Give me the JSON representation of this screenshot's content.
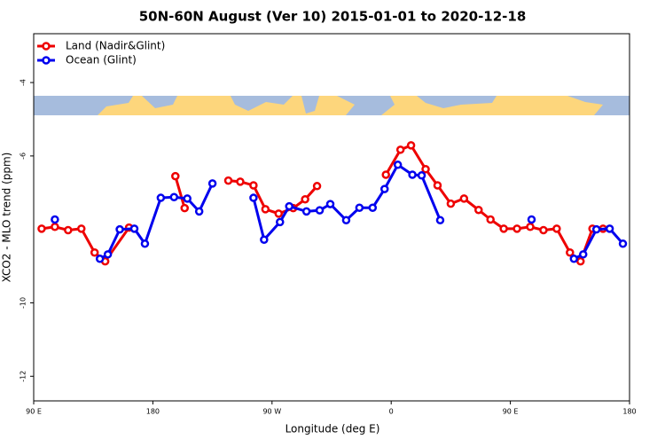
{
  "chart_data": {
    "type": "line",
    "title": "50N-60N August (Ver 10)   2015-01-01 to 2020-12-18",
    "x_label": "Longitude (deg E)",
    "y_label": "XCO2 - MLO trend (ppm)",
    "xlim": [
      90,
      540
    ],
    "ylim": [
      -12.67,
      -2.67
    ],
    "xticks": [
      {
        "value": 90,
        "label": "90 E"
      },
      {
        "value": 180,
        "label": "180"
      },
      {
        "value": 270,
        "label": "90 W"
      },
      {
        "value": 360,
        "label": "0"
      },
      {
        "value": 450,
        "label": "90 E"
      },
      {
        "value": 540,
        "label": "180"
      }
    ],
    "yticks": [
      -4,
      -6,
      -10,
      -12
    ],
    "legend": "top-left",
    "series": [
      {
        "name": "Land (Nadir&Glint)",
        "color": "#ee0000",
        "x": [
          96,
          106,
          116,
          126,
          136,
          144,
          162,
          null,
          197,
          204,
          null,
          237,
          246,
          256,
          265,
          275,
          286,
          295,
          304,
          null,
          356,
          367,
          375,
          386,
          395,
          405,
          415,
          426,
          435,
          445,
          455,
          465,
          475,
          485,
          495,
          503,
          512,
          520
        ],
        "values": [
          -7.98,
          -7.93,
          -8.02,
          -7.98,
          -8.63,
          -8.87,
          -7.95,
          null,
          -6.55,
          -7.42,
          null,
          -6.67,
          -6.7,
          -6.8,
          -7.45,
          -7.57,
          -7.42,
          -7.18,
          -6.82,
          null,
          -6.51,
          -5.83,
          -5.71,
          -6.36,
          -6.8,
          -7.3,
          -7.16,
          -7.47,
          -7.73,
          -7.98,
          -7.98,
          -7.93,
          -8.02,
          -7.98,
          -8.63,
          -8.87,
          -7.98,
          -7.98
        ]
      },
      {
        "name": "Ocean (Glint)",
        "color": "#0000ee",
        "x": [
          106,
          null,
          140,
          146,
          155,
          166,
          174,
          186,
          196,
          206,
          215,
          225,
          null,
          256,
          264,
          276,
          283,
          296,
          306,
          314,
          326,
          336,
          346,
          355,
          365,
          376,
          383,
          397,
          null,
          466,
          null,
          498,
          505,
          515,
          525,
          535
        ],
        "values": [
          -7.73,
          null,
          -8.8,
          -8.68,
          -8.0,
          -7.98,
          -8.39,
          -7.14,
          -7.12,
          -7.16,
          -7.51,
          -6.75,
          null,
          -7.14,
          -8.28,
          -7.8,
          -7.37,
          -7.51,
          -7.48,
          -7.31,
          -7.75,
          -7.41,
          -7.41,
          -6.9,
          -6.24,
          -6.51,
          -6.53,
          -7.75,
          null,
          -7.73,
          null,
          -8.8,
          -8.68,
          -8.0,
          -7.98,
          -8.39
        ]
      }
    ]
  }
}
